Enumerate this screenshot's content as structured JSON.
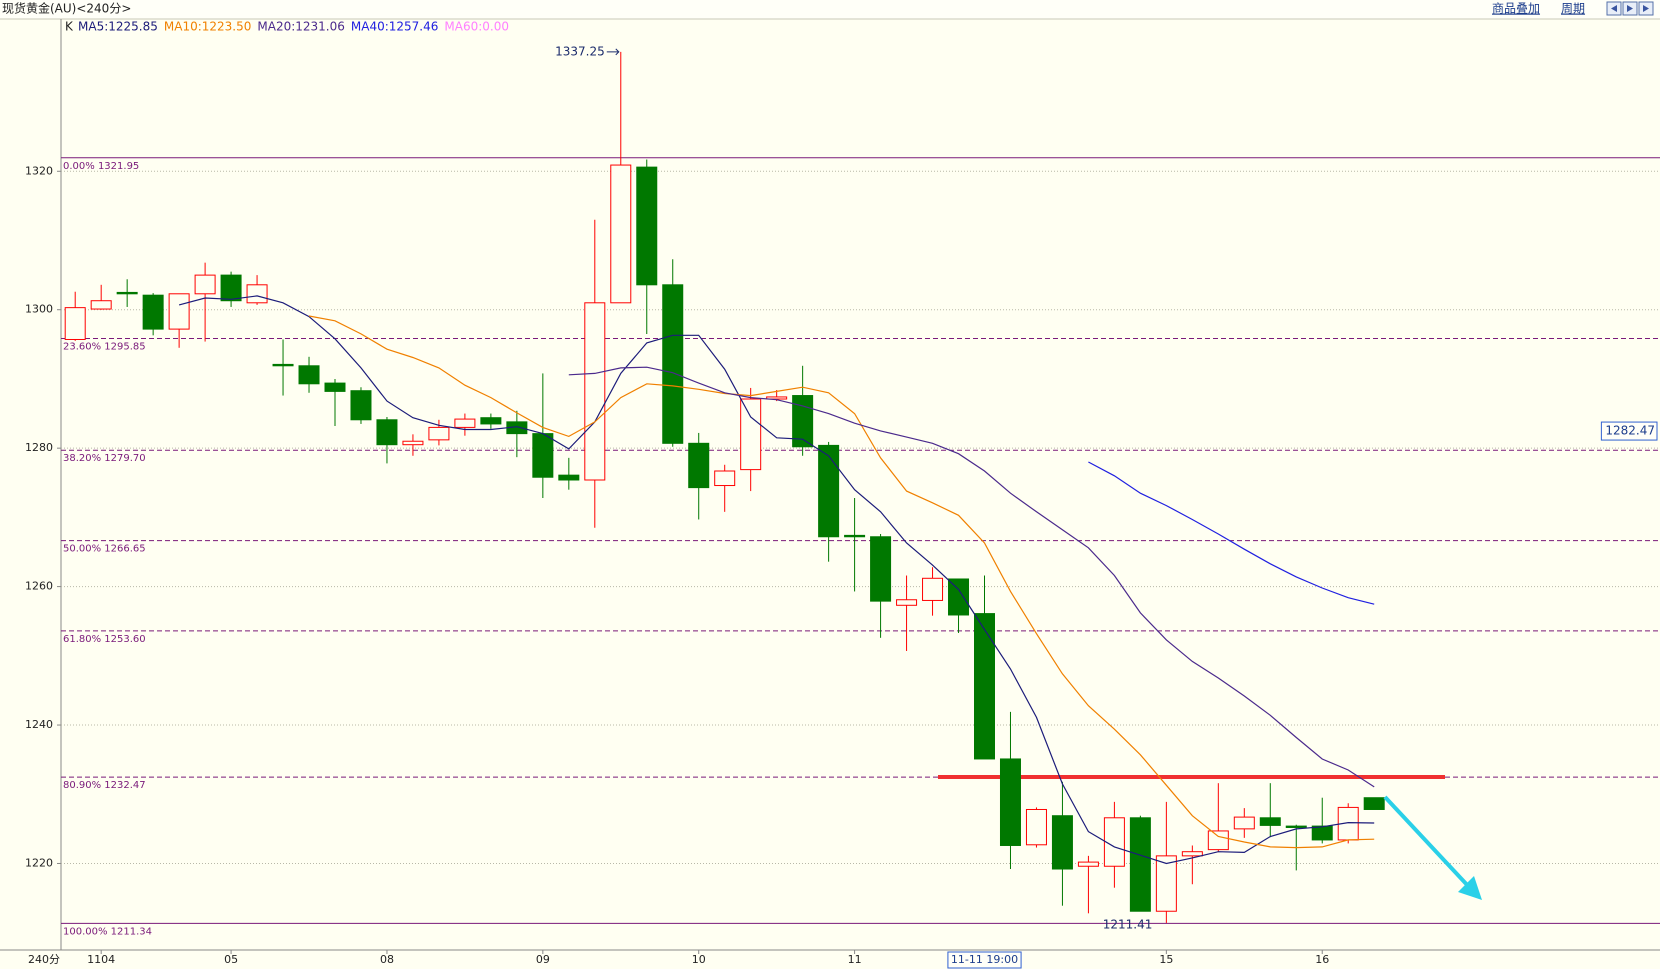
{
  "header": {
    "title": "现货黄金(AU)<240分>",
    "indicator": "K",
    "toolbar": [
      "商品叠加",
      "周期"
    ],
    "period": "240分"
  },
  "chart_data": {
    "type": "candlestick",
    "categories": [
      null,
      "1104",
      null,
      null,
      null,
      null,
      "05",
      null,
      null,
      null,
      null,
      null,
      "08",
      null,
      null,
      null,
      null,
      null,
      "09",
      null,
      null,
      null,
      null,
      null,
      "10",
      null,
      null,
      null,
      null,
      null,
      "11",
      null,
      null,
      null,
      null,
      null,
      null,
      null,
      null,
      null,
      null,
      null,
      "15",
      null,
      null,
      null,
      null,
      null,
      "16",
      null,
      null
    ],
    "open": [
      1295.7,
      1300.1,
      1302.5,
      1302.1,
      1297.2,
      1302.3,
      1305,
      1301,
      1292.1,
      1291.9,
      1289.4,
      1288.3,
      1284.1,
      1280.5,
      1281.2,
      1283,
      1284.4,
      1283.8,
      1282.1,
      1276.1,
      1275.4,
      1301,
      1320.6,
      1303.6,
      1280.7,
      1274.6,
      1276.9,
      1287.1,
      1287.6,
      1280.4,
      1267.4,
      1267.2,
      1257.3,
      1258,
      1261.1,
      1256.1,
      1235.1,
      1222.7,
      1226.9,
      1219.6,
      1219.6,
      1226.6,
      1213.1,
      1221.1,
      1222,
      1225,
      1226.6,
      1225.4,
      1225.4,
      1223.4,
      1229.5
    ],
    "high": [
      1302.6,
      1303.6,
      1304.4,
      1302.4,
      1302.3,
      1306.8,
      1305.5,
      1305,
      1295.7,
      1293.2,
      1290,
      1288.8,
      1284.5,
      1282,
      1284.1,
      1285,
      1285,
      1285.4,
      1290.8,
      1278.6,
      1313,
      1337.25,
      1321.7,
      1307.3,
      1282.2,
      1277.6,
      1288.7,
      1288.4,
      1291.9,
      1280.9,
      1272.8,
      1267.6,
      1261.6,
      1262.8,
      1261.1,
      1261.6,
      1241.9,
      1228.1,
      1231.8,
      1221.1,
      1228.9,
      1226.9,
      1228.9,
      1222.6,
      1231.6,
      1228,
      1231.6,
      1225.6,
      1229.5,
      1228.7,
      1229.5
    ],
    "low": [
      1295.5,
      1300,
      1300.4,
      1296.3,
      1294.5,
      1295.4,
      1300.4,
      1300.7,
      1287.6,
      1288,
      1283.2,
      1283.5,
      1277.8,
      1278.9,
      1280.4,
      1281.8,
      1282.8,
      1278.7,
      1272.8,
      1274,
      1268.5,
      1301,
      1296.5,
      1280.2,
      1269.7,
      1270.8,
      1273.8,
      1286.8,
      1278.9,
      1263.6,
      1259.3,
      1252.6,
      1250.7,
      1255.8,
      1253.3,
      1235.1,
      1219.2,
      1222.3,
      1213.9,
      1212.8,
      1216.5,
      1213.1,
      1211.41,
      1217,
      1221.7,
      1223.7,
      1223.8,
      1219,
      1222.9,
      1222.9,
      1227.8
    ],
    "close": [
      1300.3,
      1301.3,
      1302.3,
      1297.2,
      1302.3,
      1305,
      1301.3,
      1303.6,
      1291.9,
      1289.3,
      1288.2,
      1284.1,
      1280.5,
      1281,
      1283,
      1284.2,
      1283.5,
      1282.1,
      1275.8,
      1275.4,
      1301,
      1320.9,
      1303.6,
      1280.7,
      1274.3,
      1276.7,
      1287.1,
      1287.4,
      1280.2,
      1267.2,
      1267.2,
      1257.9,
      1258.1,
      1261.2,
      1255.9,
      1235.1,
      1222.6,
      1227.8,
      1219.2,
      1220.2,
      1226.6,
      1213.1,
      1221.1,
      1221.7,
      1224.7,
      1226.7,
      1225.5,
      1225.2,
      1223.4,
      1228.1,
      1227.8
    ],
    "up_color": "#ff0000",
    "down_color": "#007800",
    "series": [
      {
        "name": "MA5:1225.85",
        "color": "#1c1c7a",
        "values": [
          null,
          null,
          null,
          null,
          1300.7,
          1301.7,
          1301.5,
          1302,
          1301,
          1299,
          1295.8,
          1291.6,
          1286.8,
          1284.4,
          1283.3,
          1282.7,
          1282.7,
          1283.1,
          1282.1,
          1279.9,
          1283.8,
          1290.8,
          1295.2,
          1296.3,
          1296.3,
          1291.4,
          1284.5,
          1281.5,
          1281.3,
          1278.9,
          1274,
          1270.8,
          1266.3,
          1263.1,
          1259.6,
          1253.8,
          1248.1,
          1241.1,
          1231.5,
          1224.6,
          1222.4,
          1221.2,
          1220,
          1220.8,
          1221.7,
          1221.6,
          1223.9,
          1225,
          1225.3,
          1225.9,
          1225.85
        ]
      },
      {
        "name": "MA10:1223.50",
        "color": "#f08000",
        "values": [
          null,
          null,
          null,
          null,
          null,
          null,
          null,
          null,
          null,
          1299.1,
          1298.4,
          1296.5,
          1294.3,
          1293.1,
          1291.6,
          1289.1,
          1287.3,
          1285.1,
          1283,
          1281.7,
          1283.8,
          1287.3,
          1289.3,
          1289,
          1288.5,
          1287.9,
          1287.6,
          1288.2,
          1288.8,
          1288,
          1285,
          1278.6,
          1273.8,
          1272.1,
          1270.3,
          1266.3,
          1259.3,
          1253.2,
          1247.4,
          1242.8,
          1239.4,
          1235.7,
          1231.3,
          1226.9,
          1223.9,
          1223.1,
          1222.4,
          1222.3,
          1222.4,
          1223.4,
          1223.5
        ]
      },
      {
        "name": "MA20:1231.06",
        "color": "#4b2a8c",
        "values": [
          null,
          null,
          null,
          null,
          null,
          null,
          null,
          null,
          null,
          null,
          null,
          null,
          null,
          null,
          null,
          null,
          null,
          null,
          null,
          1290.6,
          1290.8,
          1291.6,
          1291.7,
          1290.9,
          1289.4,
          1288,
          1287.3,
          1287,
          1286.1,
          1285,
          1283.6,
          1282.5,
          1281.6,
          1280.7,
          1279.2,
          1276.7,
          1273.5,
          1270.8,
          1268.2,
          1265.6,
          1261.6,
          1256.2,
          1252.3,
          1249.2,
          1246.8,
          1244.2,
          1241.4,
          1238.2,
          1235.1,
          1233.5,
          1231.06
        ]
      },
      {
        "name": "MA40:1257.46",
        "color": "#2020e0",
        "values": [
          null,
          null,
          null,
          null,
          null,
          null,
          null,
          null,
          null,
          null,
          null,
          null,
          null,
          null,
          null,
          null,
          null,
          null,
          null,
          null,
          null,
          null,
          null,
          null,
          null,
          null,
          null,
          null,
          null,
          null,
          null,
          null,
          null,
          null,
          null,
          null,
          null,
          null,
          null,
          1278,
          1276,
          1273.5,
          1271.7,
          1269.7,
          1267.6,
          1265.4,
          1263.3,
          1261.4,
          1259.8,
          1258.4,
          1257.46
        ]
      },
      {
        "name": "MA60:0.00",
        "color": "#ff80ff",
        "values": [
          null,
          null,
          null,
          null,
          null,
          null,
          null,
          null,
          null,
          null,
          null,
          null,
          null,
          null,
          null,
          null,
          null,
          null,
          null,
          null,
          null,
          null,
          null,
          null,
          null,
          null,
          null,
          null,
          null,
          null,
          null,
          null,
          null,
          null,
          null,
          null,
          null,
          null,
          null,
          null,
          null,
          null,
          null,
          null,
          null,
          null,
          null,
          null,
          null,
          null,
          null
        ]
      }
    ],
    "ylim": [
      1207.5,
      1342
    ],
    "yticks": [
      1220,
      1240,
      1260,
      1280,
      1300,
      1320
    ],
    "grid": true,
    "fibonacci": [
      {
        "value": 1321.95,
        "label": "0.00% 1321.95",
        "line": "solid"
      },
      {
        "value": 1295.85,
        "label": "23.60% 1295.85",
        "line": "dashed"
      },
      {
        "value": 1279.7,
        "label": "38.20% 1279.70",
        "line": "dashed"
      },
      {
        "value": 1266.65,
        "label": "50.00% 1266.65",
        "line": "dashed"
      },
      {
        "value": 1253.6,
        "label": "61.80% 1253.60",
        "line": "dashed"
      },
      {
        "value": 1232.47,
        "label": "80.90% 1232.47",
        "line": "dashed"
      },
      {
        "value": 1211.34,
        "label": "100.00% 1211.34",
        "line": "solid"
      }
    ],
    "resistance_line": 1232.5,
    "cursor": {
      "x_label": "11-11 19:00",
      "price": 1282.47
    }
  }
}
